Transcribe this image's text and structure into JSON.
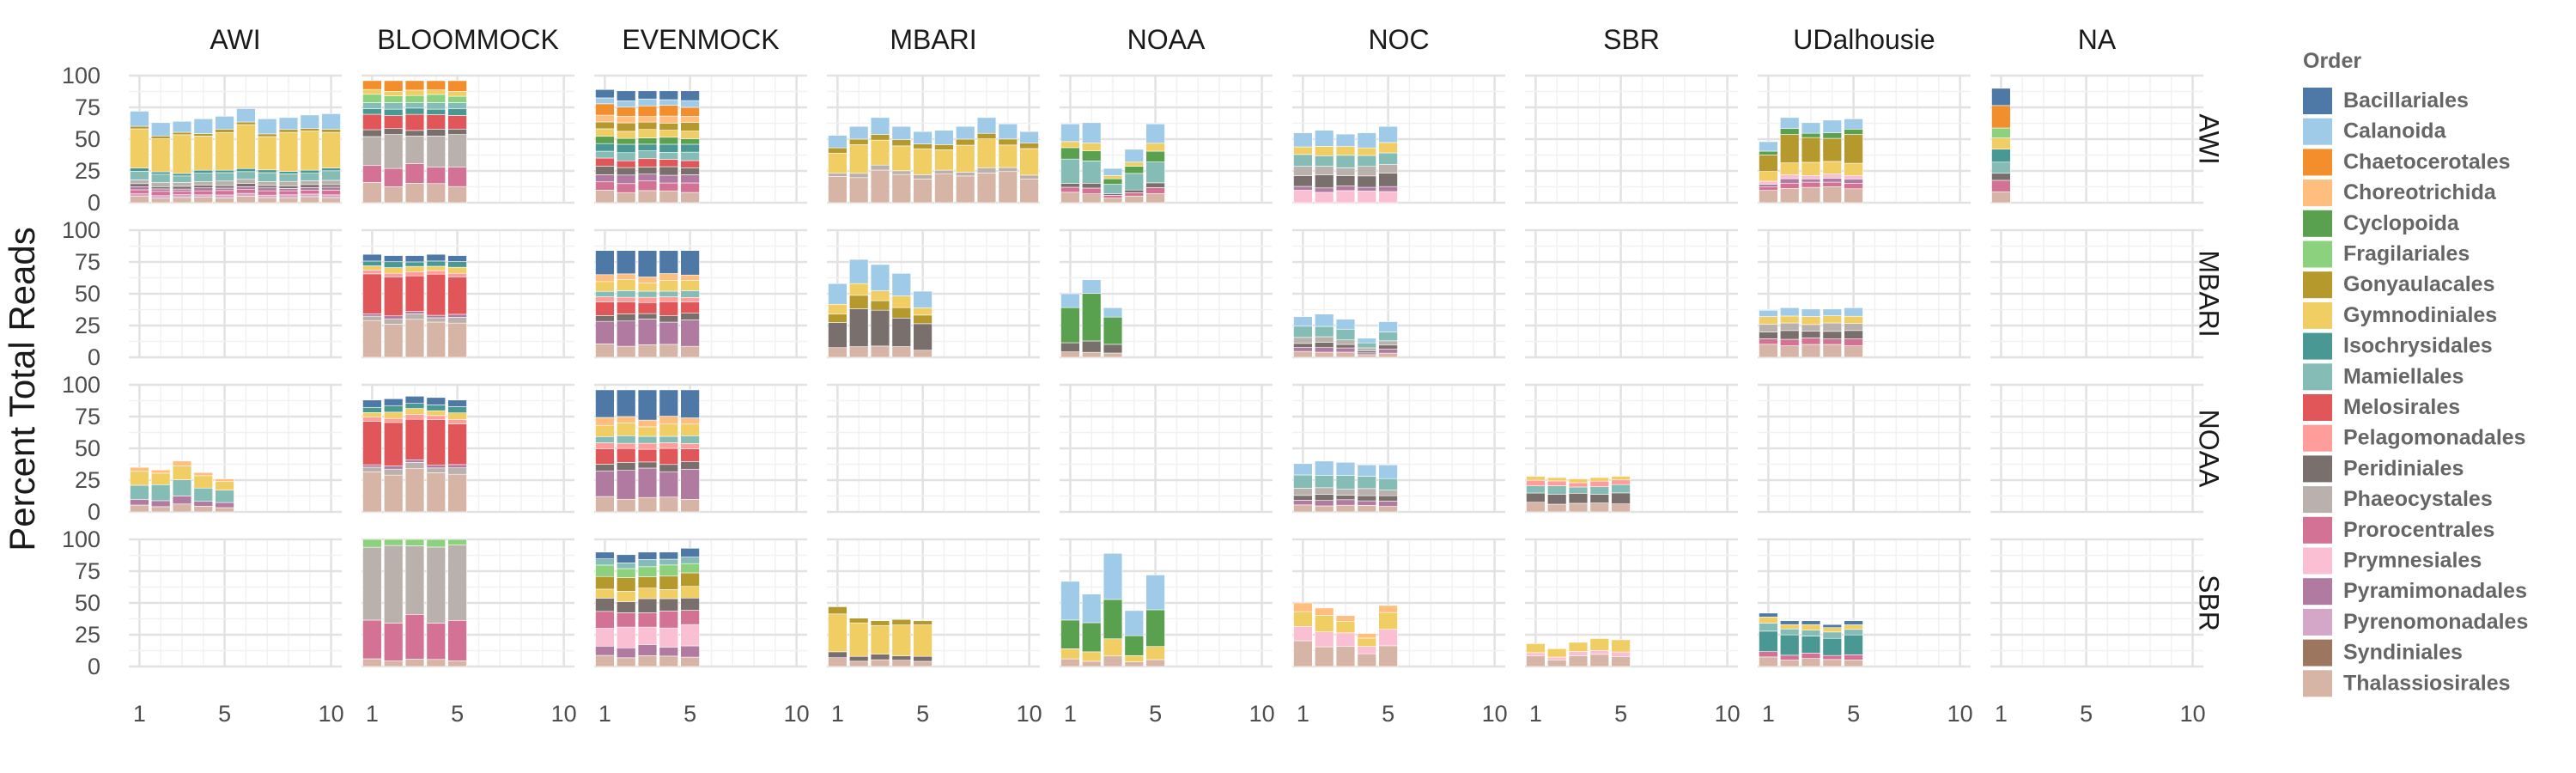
{
  "chart_data": {
    "type": "bar",
    "stacked": true,
    "faceted": true,
    "ylabel": "Percent Total Reads",
    "xlabel": "",
    "x_ticks": [
      1,
      5,
      10
    ],
    "y_ticks": [
      0,
      25,
      50,
      75,
      100
    ],
    "xlim": [
      0.5,
      10.5
    ],
    "ylim": [
      0,
      100
    ],
    "grid": true,
    "legend": {
      "position": "right",
      "title": "Order",
      "entries": [
        {
          "name": "Bacillariales",
          "color": "#4E79A7"
        },
        {
          "name": "Calanoida",
          "color": "#A0CBE8"
        },
        {
          "name": "Chaetocerotales",
          "color": "#F28E2B"
        },
        {
          "name": "Choreotrichida",
          "color": "#FFBE7D"
        },
        {
          "name": "Cyclopoida",
          "color": "#59A14F"
        },
        {
          "name": "Fragilariales",
          "color": "#8CD17D"
        },
        {
          "name": "Gonyaulacales",
          "color": "#B6992D"
        },
        {
          "name": "Gymnodiniales",
          "color": "#F1CE63"
        },
        {
          "name": "Isochrysidales",
          "color": "#499894"
        },
        {
          "name": "Mamiellales",
          "color": "#86BCB6"
        },
        {
          "name": "Melosirales",
          "color": "#E15759"
        },
        {
          "name": "Pelagomonadales",
          "color": "#FF9D9A"
        },
        {
          "name": "Peridiniales",
          "color": "#79706E"
        },
        {
          "name": "Phaeocystales",
          "color": "#BAB0AC"
        },
        {
          "name": "Prorocentrales",
          "color": "#D37295"
        },
        {
          "name": "Prymnesiales",
          "color": "#FABFD2"
        },
        {
          "name": "Pyramimonadales",
          "color": "#B07AA1"
        },
        {
          "name": "Pyrenomonadales",
          "color": "#D4A6C8"
        },
        {
          "name": "Syndiniales",
          "color": "#9D7660"
        },
        {
          "name": "Thalassiosirales",
          "color": "#D7B5A6"
        }
      ]
    },
    "columns": [
      "AWI",
      "BLOOMMOCK",
      "EVENMOCK",
      "MBARI",
      "NOAA",
      "NOC",
      "SBR",
      "UDalhousie",
      "NA"
    ],
    "rows": [
      "AWI",
      "MBARI",
      "NOAA",
      "SBR"
    ],
    "panels": [
      {
        "row": "AWI",
        "col": "AWI",
        "x": [
          1,
          2,
          3,
          4,
          5,
          6,
          7,
          8,
          9,
          10
        ],
        "totals": [
          72,
          63,
          64,
          66,
          68,
          74,
          66,
          67,
          69,
          70
        ],
        "profile": "awi"
      },
      {
        "row": "AWI",
        "col": "BLOOMMOCK",
        "x": [
          1,
          2,
          3,
          4,
          5
        ],
        "totals": [
          96,
          96,
          96,
          96,
          96
        ],
        "profile": "bloom"
      },
      {
        "row": "AWI",
        "col": "EVENMOCK",
        "x": [
          1,
          2,
          3,
          4,
          5
        ],
        "totals": [
          89,
          88,
          88,
          88,
          88
        ],
        "profile": "even"
      },
      {
        "row": "AWI",
        "col": "MBARI",
        "x": [
          1,
          2,
          3,
          4,
          5,
          6,
          7,
          8,
          9,
          10
        ],
        "totals": [
          53,
          60,
          67,
          60,
          56,
          57,
          60,
          67,
          62,
          56
        ],
        "profile": "mbari_awi"
      },
      {
        "row": "AWI",
        "col": "NOAA",
        "x": [
          1,
          2,
          3,
          4,
          5
        ],
        "totals": [
          62,
          63,
          27,
          42,
          62
        ],
        "profile": "noaa_awi"
      },
      {
        "row": "AWI",
        "col": "NOC",
        "x": [
          1,
          2,
          3,
          4,
          5
        ],
        "totals": [
          55,
          57,
          54,
          55,
          60
        ],
        "profile": "noc"
      },
      {
        "row": "AWI",
        "col": "UDalhousie",
        "x": [
          1,
          2,
          3,
          4,
          5
        ],
        "totals": [
          48,
          67,
          63,
          65,
          66
        ],
        "profile": "udal_awi"
      },
      {
        "row": "AWI",
        "col": "NA",
        "x": [
          1
        ],
        "totals": [
          90
        ],
        "profile": "na"
      },
      {
        "row": "MBARI",
        "col": "BLOOMMOCK",
        "x": [
          1,
          2,
          3,
          4,
          5
        ],
        "totals": [
          81,
          80,
          80,
          81,
          80
        ],
        "profile": "bloom_mel"
      },
      {
        "row": "MBARI",
        "col": "EVENMOCK",
        "x": [
          1,
          2,
          3,
          4,
          5
        ],
        "totals": [
          84,
          84,
          84,
          84,
          84
        ],
        "profile": "even_bac"
      },
      {
        "row": "MBARI",
        "col": "MBARI",
        "x": [
          1,
          2,
          3,
          4,
          5
        ],
        "totals": [
          58,
          77,
          73,
          66,
          52
        ],
        "profile": "mbari_mbari"
      },
      {
        "row": "MBARI",
        "col": "NOAA",
        "x": [
          1,
          2,
          3
        ],
        "totals": [
          50,
          61,
          39
        ],
        "profile": "noaa_mbari"
      },
      {
        "row": "MBARI",
        "col": "NOC",
        "x": [
          1,
          2,
          3,
          4,
          5
        ],
        "totals": [
          32,
          34,
          30,
          15,
          28
        ],
        "profile": "noc_small"
      },
      {
        "row": "MBARI",
        "col": "UDalhousie",
        "x": [
          1,
          2,
          3,
          4,
          5
        ],
        "totals": [
          37,
          39,
          38,
          38,
          39
        ],
        "profile": "udal_mbari"
      },
      {
        "row": "NOAA",
        "col": "AWI",
        "x": [
          1,
          2,
          3,
          4,
          5
        ],
        "totals": [
          35,
          33,
          40,
          31,
          26
        ],
        "profile": "awi_noaa"
      },
      {
        "row": "NOAA",
        "col": "BLOOMMOCK",
        "x": [
          1,
          2,
          3,
          4,
          5
        ],
        "totals": [
          88,
          89,
          91,
          90,
          88
        ],
        "profile": "bloom_mel"
      },
      {
        "row": "NOAA",
        "col": "EVENMOCK",
        "x": [
          1,
          2,
          3,
          4,
          5
        ],
        "totals": [
          96,
          96,
          96,
          96,
          96
        ],
        "profile": "even_bac"
      },
      {
        "row": "NOAA",
        "col": "NOC",
        "x": [
          1,
          2,
          3,
          4,
          5
        ],
        "totals": [
          38,
          40,
          39,
          37,
          37
        ],
        "profile": "noc_small"
      },
      {
        "row": "NOAA",
        "col": "SBR",
        "x": [
          1,
          2,
          3,
          4,
          5
        ],
        "totals": [
          28,
          27,
          26,
          27,
          28
        ],
        "profile": "sbr_noaa"
      },
      {
        "row": "SBR",
        "col": "BLOOMMOCK",
        "x": [
          1,
          2,
          3,
          4,
          5
        ],
        "totals": [
          100,
          100,
          100,
          100,
          100
        ],
        "profile": "bloom_phae"
      },
      {
        "row": "SBR",
        "col": "EVENMOCK",
        "x": [
          1,
          2,
          3,
          4,
          5
        ],
        "totals": [
          90,
          88,
          90,
          90,
          93
        ],
        "profile": "even_sbr"
      },
      {
        "row": "SBR",
        "col": "MBARI",
        "x": [
          1,
          2,
          3,
          4,
          5
        ],
        "totals": [
          47,
          38,
          36,
          37,
          36
        ],
        "profile": "mbari_sbr"
      },
      {
        "row": "SBR",
        "col": "NOAA",
        "x": [
          1,
          2,
          3,
          4,
          5
        ],
        "totals": [
          67,
          57,
          89,
          44,
          72
        ],
        "profile": "noaa_sbr"
      },
      {
        "row": "SBR",
        "col": "NOC",
        "x": [
          1,
          2,
          3,
          4,
          5
        ],
        "totals": [
          50,
          46,
          40,
          26,
          48
        ],
        "profile": "noc_sbr"
      },
      {
        "row": "SBR",
        "col": "SBR",
        "x": [
          1,
          2,
          3,
          4,
          5
        ],
        "totals": [
          18,
          14,
          19,
          22,
          21
        ],
        "profile": "sbr_sbr"
      },
      {
        "row": "SBR",
        "col": "UDalhousie",
        "x": [
          1,
          2,
          3,
          4,
          5
        ],
        "totals": [
          42,
          36,
          36,
          33,
          36
        ],
        "profile": "udal_sbr"
      }
    ],
    "profiles": {
      "awi": [
        [
          "Thalassiosirales",
          4
        ],
        [
          "Pyrenomonadales",
          2
        ],
        [
          "Prorocentrales",
          3
        ],
        [
          "Pyramimonadales",
          2
        ],
        [
          "Peridiniales",
          2
        ],
        [
          "Phaeocystales",
          3
        ],
        [
          "Mamiellales",
          6
        ],
        [
          "Isochrysidales",
          2
        ],
        [
          "Gymnodiniales",
          28
        ],
        [
          "Gonyaulacales",
          2
        ],
        [
          "Calanoida",
          10
        ]
      ],
      "bloom": [
        [
          "Thalassiosirales",
          15
        ],
        [
          "Prorocentrales",
          15
        ],
        [
          "Phaeocystales",
          25
        ],
        [
          "Peridiniales",
          5
        ],
        [
          "Melosirales",
          12
        ],
        [
          "Isochrysidales",
          5
        ],
        [
          "Mamiellales",
          5
        ],
        [
          "Fragilariales",
          6
        ],
        [
          "Gymnodiniales",
          4
        ],
        [
          "Chaetocerotales",
          8
        ]
      ],
      "even": [
        [
          "Thalassiosirales",
          9
        ],
        [
          "Prorocentrales",
          7
        ],
        [
          "Pyramimonadales",
          6
        ],
        [
          "Peridiniales",
          6
        ],
        [
          "Melosirales",
          6
        ],
        [
          "Mamiellales",
          6
        ],
        [
          "Isochrysidales",
          6
        ],
        [
          "Cyclopoida",
          5
        ],
        [
          "Gymnodiniales",
          6
        ],
        [
          "Gonyaulacales",
          6
        ],
        [
          "Choreotrichida",
          5
        ],
        [
          "Chaetocerotales",
          8
        ],
        [
          "Calanoida",
          5
        ],
        [
          "Bacillariales",
          7
        ]
      ],
      "mbari_awi": [
        [
          "Thalassiosirales",
          20
        ],
        [
          "Phaeocystales",
          3
        ],
        [
          "Gymnodiniales",
          18
        ],
        [
          "Gonyaulacales",
          4
        ],
        [
          "Calanoida",
          10
        ]
      ],
      "noaa_awi": [
        [
          "Thalassiosirales",
          7
        ],
        [
          "Prorocentrales",
          4
        ],
        [
          "Peridiniales",
          3
        ],
        [
          "Mamiellales",
          16
        ],
        [
          "Cyclopoida",
          8
        ],
        [
          "Gymnodiniales",
          5
        ],
        [
          "Calanoida",
          13
        ]
      ],
      "noc": [
        [
          "Prymnesiales",
          8
        ],
        [
          "Pyramimonadales",
          3
        ],
        [
          "Peridiniales",
          8
        ],
        [
          "Phaeocystales",
          6
        ],
        [
          "Mamiellales",
          8
        ],
        [
          "Gymnodiniales",
          6
        ],
        [
          "Calanoida",
          10
        ]
      ],
      "udal_awi": [
        [
          "Thalassiosirales",
          12
        ],
        [
          "Prorocentrales",
          4
        ],
        [
          "Pyramimonadales",
          3
        ],
        [
          "Prymnesiales",
          3
        ],
        [
          "Gymnodiniales",
          10
        ],
        [
          "Gonyaulacales",
          20
        ],
        [
          "Cyclopoida",
          4
        ],
        [
          "Calanoida",
          9
        ]
      ],
      "na": [
        [
          "Thalassiosirales",
          8
        ],
        [
          "Prorocentrales",
          10
        ],
        [
          "Peridiniales",
          6
        ],
        [
          "Mamiellales",
          8
        ],
        [
          "Isochrysidales",
          10
        ],
        [
          "Gymnodiniales",
          10
        ],
        [
          "Fragilariales",
          8
        ],
        [
          "Chaetocerotales",
          16
        ],
        [
          "Bacillariales",
          14
        ]
      ],
      "bloom_mel": [
        [
          "Thalassiosirales",
          28
        ],
        [
          "Phaeocystales",
          4
        ],
        [
          "Pyramimonadales",
          2
        ],
        [
          "Melosirales",
          30
        ],
        [
          "Pelagomonadales",
          3
        ],
        [
          "Gymnodiniales",
          4
        ],
        [
          "Isochrysidales",
          4
        ],
        [
          "Bacillariales",
          5
        ]
      ],
      "even_bac": [
        [
          "Thalassiosirales",
          10
        ],
        [
          "Pyramimonadales",
          20
        ],
        [
          "Peridiniales",
          5
        ],
        [
          "Melosirales",
          10
        ],
        [
          "Pelagomonadales",
          4
        ],
        [
          "Mamiellales",
          5
        ],
        [
          "Gymnodiniales",
          8
        ],
        [
          "Choreotrichida",
          5
        ],
        [
          "Bacillariales",
          20
        ]
      ],
      "mbari_mbari": [
        [
          "Thalassiosirales",
          8
        ],
        [
          "Peridiniales",
          25
        ],
        [
          "Gonyaulacales",
          8
        ],
        [
          "Gymnodiniales",
          8
        ],
        [
          "Calanoida",
          18
        ]
      ],
      "noaa_mbari": [
        [
          "Thalassiosirales",
          4
        ],
        [
          "Peridiniales",
          8
        ],
        [
          "Cyclopoida",
          30
        ],
        [
          "Calanoida",
          10
        ]
      ],
      "noc_small": [
        [
          "Thalassiosirales",
          5
        ],
        [
          "Pyramimonadales",
          4
        ],
        [
          "Peridiniales",
          4
        ],
        [
          "Phaeocystales",
          5
        ],
        [
          "Mamiellales",
          10
        ],
        [
          "Calanoida",
          10
        ]
      ],
      "udal_mbari": [
        [
          "Thalassiosirales",
          10
        ],
        [
          "Prorocentrales",
          5
        ],
        [
          "Peridiniales",
          6
        ],
        [
          "Phaeocystales",
          6
        ],
        [
          "Gymnodiniales",
          6
        ],
        [
          "Calanoida",
          6
        ]
      ],
      "awi_noaa": [
        [
          "Thalassiosirales",
          5
        ],
        [
          "Pyramimonadales",
          5
        ],
        [
          "Mamiellales",
          12
        ],
        [
          "Gymnodiniales",
          10
        ],
        [
          "Choreotrichida",
          3
        ]
      ],
      "sbr_noaa": [
        [
          "Thalassiosirales",
          7
        ],
        [
          "Peridiniales",
          8
        ],
        [
          "Mamiellales",
          6
        ],
        [
          "Pelagomonadales",
          4
        ],
        [
          "Gymnodiniales",
          3
        ]
      ],
      "bloom_phae": [
        [
          "Thalassiosirales",
          5
        ],
        [
          "Prorocentrales",
          30
        ],
        [
          "Phaeocystales",
          55
        ],
        [
          "Fragilariales",
          5
        ]
      ],
      "even_sbr": [
        [
          "Thalassiosirales",
          8
        ],
        [
          "Pyramimonadales",
          8
        ],
        [
          "Prymnesiales",
          15
        ],
        [
          "Prorocentrales",
          12
        ],
        [
          "Peridiniales",
          10
        ],
        [
          "Gymnodiniales",
          8
        ],
        [
          "Gonyaulacales",
          10
        ],
        [
          "Fragilariales",
          8
        ],
        [
          "Mamiellales",
          5
        ],
        [
          "Bacillariales",
          6
        ]
      ],
      "mbari_sbr": [
        [
          "Thalassiosirales",
          5
        ],
        [
          "Peridiniales",
          4
        ],
        [
          "Gymnodiniales",
          25
        ],
        [
          "Gonyaulacales",
          4
        ]
      ],
      "noaa_sbr": [
        [
          "Thalassiosirales",
          5
        ],
        [
          "Gymnodiniales",
          8
        ],
        [
          "Cyclopoida",
          22
        ],
        [
          "Calanoida",
          25
        ]
      ],
      "noc_sbr": [
        [
          "Thalassiosirales",
          15
        ],
        [
          "Prymnesiales",
          10
        ],
        [
          "Gymnodiniales",
          10
        ],
        [
          "Choreotrichida",
          5
        ]
      ],
      "sbr_sbr": [
        [
          "Thalassiosirales",
          8
        ],
        [
          "Prymnesiales",
          3
        ],
        [
          "Gymnodiniales",
          8
        ]
      ],
      "udal_sbr": [
        [
          "Thalassiosirales",
          6
        ],
        [
          "Prorocentrales",
          4
        ],
        [
          "Isochrysidales",
          15
        ],
        [
          "Mamiellales",
          5
        ],
        [
          "Gymnodiniales",
          4
        ],
        [
          "Bacillariales",
          3
        ]
      ]
    }
  }
}
